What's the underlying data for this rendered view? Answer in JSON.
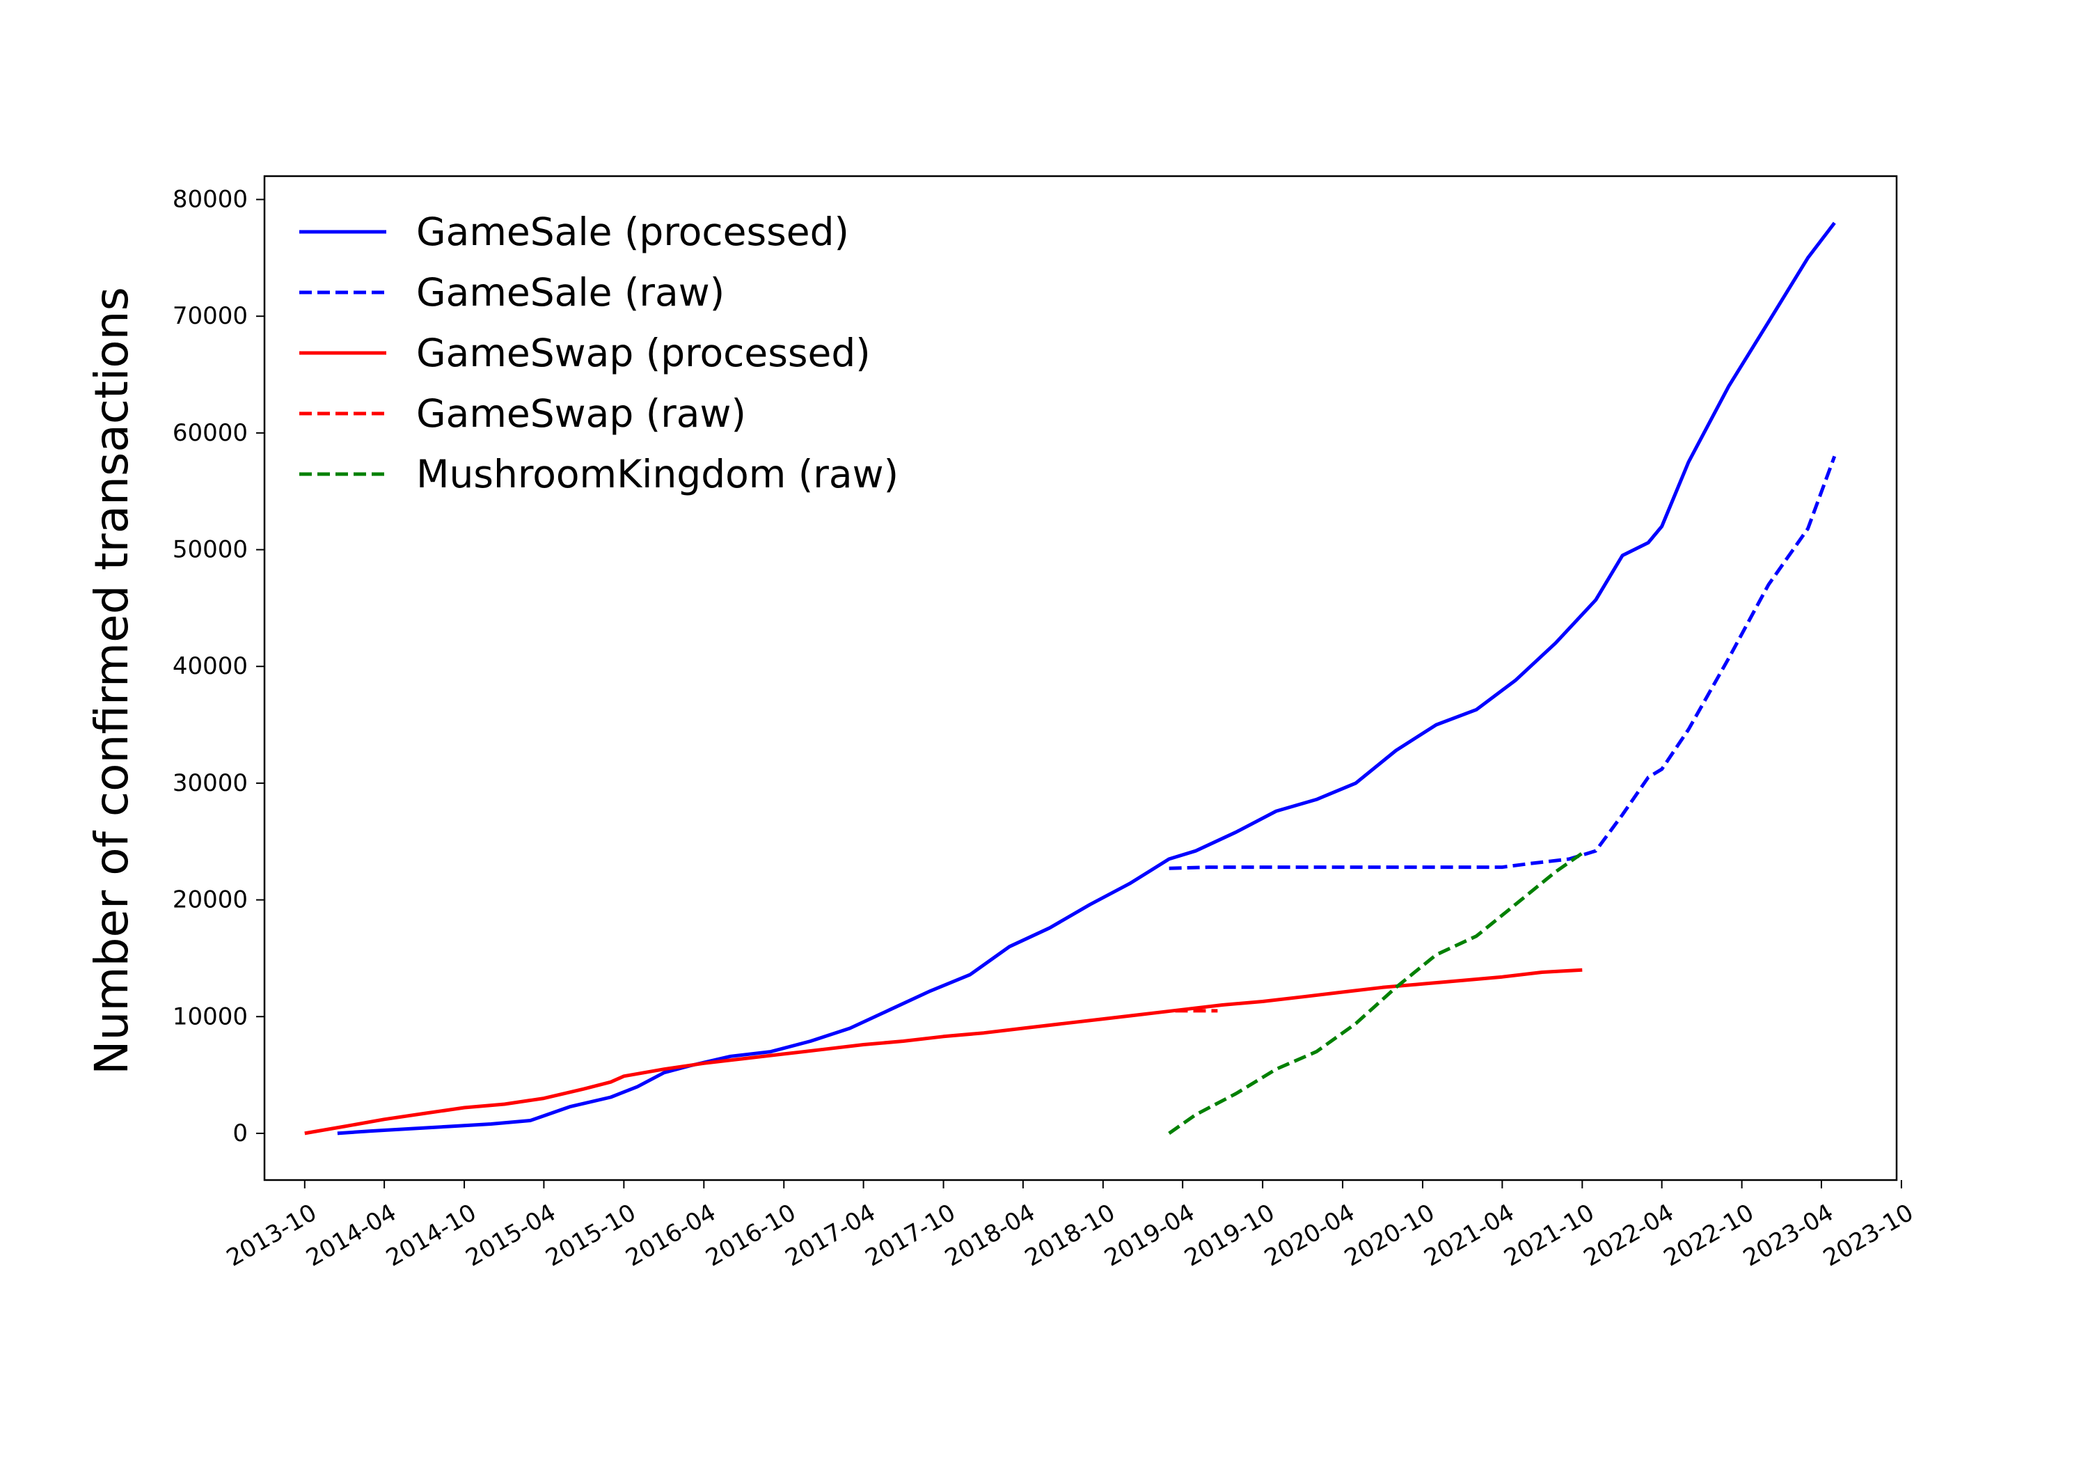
{
  "chart_data": {
    "type": "line",
    "title": "",
    "xlabel": "",
    "ylabel": "Number of confirmed transactions",
    "x_type": "date",
    "xlim": [
      "2013-07-01",
      "2023-09-20"
    ],
    "ylim": [
      -4000,
      82000
    ],
    "xticks": [
      "2013-10",
      "2014-04",
      "2014-10",
      "2015-04",
      "2015-10",
      "2016-04",
      "2016-10",
      "2017-04",
      "2017-10",
      "2018-04",
      "2018-10",
      "2019-04",
      "2019-10",
      "2020-04",
      "2020-10",
      "2021-04",
      "2021-10",
      "2022-04",
      "2022-10",
      "2023-04",
      "2023-10"
    ],
    "yticks": [
      0,
      10000,
      20000,
      30000,
      40000,
      50000,
      60000,
      70000,
      80000
    ],
    "ytick_labels": [
      "0",
      "10000",
      "20000",
      "30000",
      "40000",
      "50000",
      "60000",
      "70000",
      "80000"
    ],
    "grid": false,
    "legend_position": "top-left",
    "series": [
      {
        "name": "GameSale (processed)",
        "color": "#0000ff",
        "dash": "solid",
        "x": [
          "2013-12-15",
          "2014-03-01",
          "2014-06-01",
          "2014-09-01",
          "2014-12-01",
          "2015-03-01",
          "2015-04-01",
          "2015-06-01",
          "2015-09-01",
          "2015-11-01",
          "2016-01-01",
          "2016-03-01",
          "2016-06-01",
          "2016-09-01",
          "2016-12-01",
          "2017-03-01",
          "2017-06-01",
          "2017-09-01",
          "2017-12-01",
          "2018-03-01",
          "2018-06-01",
          "2018-09-01",
          "2018-12-01",
          "2019-03-01",
          "2019-05-01",
          "2019-08-01",
          "2019-11-01",
          "2020-02-01",
          "2020-05-01",
          "2020-08-01",
          "2020-11-01",
          "2021-02-01",
          "2021-05-01",
          "2021-08-01",
          "2021-11-01",
          "2022-01-01",
          "2022-03-01",
          "2022-04-01",
          "2022-06-01",
          "2022-09-01",
          "2022-12-01",
          "2023-03-01",
          "2023-05-01"
        ],
        "y": [
          0,
          200,
          400,
          600,
          800,
          1100,
          1500,
          2300,
          3100,
          4000,
          5200,
          5800,
          6600,
          7000,
          7900,
          9000,
          10600,
          12200,
          13600,
          16000,
          17600,
          19600,
          21400,
          23500,
          24200,
          25800,
          27600,
          28600,
          30000,
          32800,
          35000,
          36300,
          38800,
          42000,
          45700,
          49500,
          50600,
          52000,
          57500,
          64000,
          69500,
          75000,
          78000
        ]
      },
      {
        "name": "GameSale (raw)",
        "color": "#0000ff",
        "dash": "dashed",
        "x": [
          "2019-03-01",
          "2019-06-01",
          "2020-01-01",
          "2020-06-01",
          "2021-01-01",
          "2021-04-01",
          "2021-06-01",
          "2021-09-01",
          "2021-11-01",
          "2022-01-01",
          "2022-03-01",
          "2022-04-01",
          "2022-06-01",
          "2022-09-01",
          "2022-12-01",
          "2023-03-01",
          "2023-05-01"
        ],
        "y": [
          22700,
          22800,
          22800,
          22800,
          22800,
          22800,
          23100,
          23500,
          24200,
          27300,
          30500,
          31200,
          34600,
          40700,
          47000,
          51800,
          58000
        ]
      },
      {
        "name": "GameSwap (processed)",
        "color": "#ff0000",
        "dash": "solid",
        "x": [
          "2013-10-01",
          "2014-01-01",
          "2014-04-01",
          "2014-07-01",
          "2014-10-01",
          "2015-01-01",
          "2015-04-01",
          "2015-07-01",
          "2015-09-01",
          "2015-10-01",
          "2016-01-01",
          "2016-04-01",
          "2016-07-01",
          "2016-10-01",
          "2017-01-01",
          "2017-04-01",
          "2017-07-01",
          "2017-10-01",
          "2018-01-01",
          "2018-04-01",
          "2018-07-01",
          "2018-10-01",
          "2019-01-01",
          "2019-04-01",
          "2019-07-01",
          "2019-10-01",
          "2020-01-01",
          "2020-04-01",
          "2020-07-01",
          "2020-10-01",
          "2021-01-01",
          "2021-04-01",
          "2021-07-01",
          "2021-10-01"
        ],
        "y": [
          0,
          600,
          1200,
          1700,
          2200,
          2500,
          3000,
          3800,
          4400,
          4900,
          5500,
          6000,
          6400,
          6800,
          7200,
          7600,
          7900,
          8300,
          8600,
          9000,
          9400,
          9800,
          10200,
          10600,
          11000,
          11300,
          11700,
          12100,
          12500,
          12800,
          13100,
          13400,
          13800,
          14000
        ]
      },
      {
        "name": "GameSwap (raw)",
        "color": "#ff0000",
        "dash": "dashed",
        "x": [
          "2019-03-15",
          "2019-06-20"
        ],
        "y": [
          10500,
          10500
        ]
      },
      {
        "name": "MushroomKingdom (raw)",
        "color": "#008000",
        "dash": "dashed",
        "x": [
          "2019-03-01",
          "2019-05-01",
          "2019-08-01",
          "2019-11-01",
          "2020-02-01",
          "2020-05-01",
          "2020-08-01",
          "2020-11-01",
          "2021-02-01",
          "2021-05-01",
          "2021-08-01",
          "2021-10-01"
        ],
        "y": [
          0,
          1600,
          3400,
          5500,
          7000,
          9400,
          12500,
          15300,
          16900,
          19600,
          22400,
          24000
        ]
      }
    ]
  }
}
